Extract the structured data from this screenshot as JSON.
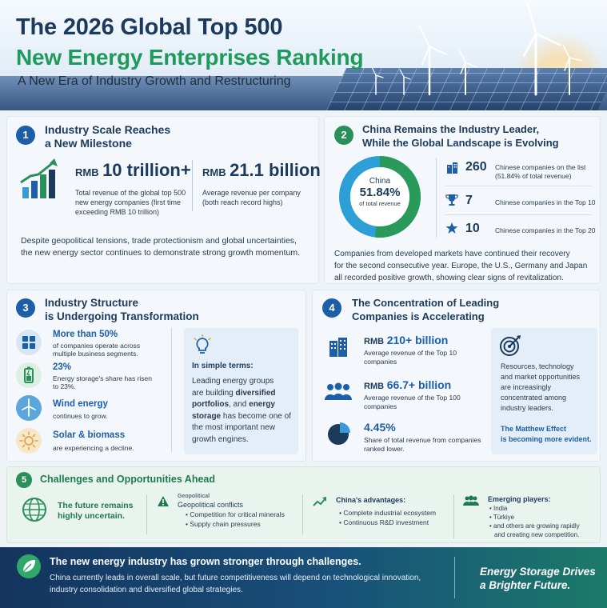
{
  "header": {
    "title_line1": "The 2026 Global Top 500",
    "title_line2": "New Energy Enterprises Ranking",
    "subtitle": "A New Era of Industry Growth and Restructuring"
  },
  "colors": {
    "navy": "#1b3a5c",
    "green": "#2a8f5a",
    "blue": "#1c5ea8"
  },
  "s1": {
    "number": "1",
    "title_a": "Industry Scale Reaches",
    "title_b": "a New Milestone",
    "stat1_prefix": "RMB",
    "stat1_value": "10 trillion+",
    "stat1_desc1": "Total revenue of the global top 500",
    "stat1_desc2": "new energy companies (first time",
    "stat1_desc3": "exceeding RMB 10 trillion)",
    "stat2_prefix": "RMB",
    "stat2_value": "21.1 billion",
    "stat2_desc1": "Average revenue per company",
    "stat2_desc2": "(both reach record highs)",
    "body1": "Despite geopolitical tensions, trade protectionism and global uncertainties,",
    "body2": "the new energy sector continues to demonstrate strong growth momentum.",
    "icon": "bar-chart-growth-icon"
  },
  "s2": {
    "number": "2",
    "title_a": "China Remains the Industry Leader,",
    "title_b": "While the Global Landscape is Evolving",
    "donut_label": "China",
    "donut_value": "51.84%",
    "donut_caption": "of total revenue",
    "donut_share": 51.84,
    "rows": [
      {
        "icon": "building-icon",
        "value": "260",
        "label1": "Chinese companies on the list",
        "label2": "(51.84% of total revenue)"
      },
      {
        "icon": "trophy-icon",
        "value": "7",
        "label1": "Chinese companies in the Top 10",
        "label2": ""
      },
      {
        "icon": "star-icon",
        "value": "10",
        "label1": "Chinese companies in the Top 20",
        "label2": ""
      }
    ],
    "body1": "Companies from developed markets have continued their recovery",
    "body2": "for the second consecutive year. Europe, the U.S., Germany and Japan",
    "body3": "all recorded positive growth, showing clear signs of revitalization."
  },
  "s3": {
    "number": "3",
    "title_a": "Industry Structure",
    "title_b": "is Undergoing Transformation",
    "items": [
      {
        "icon": "grid-segments-icon",
        "head": "More than 50%",
        "sub1": "of companies operate across",
        "sub2": "multiple business segments."
      },
      {
        "icon": "battery-icon",
        "head": "23%",
        "sub1": "Energy storage's share has risen",
        "sub2": "to 23%."
      },
      {
        "icon": "wind-turbine-icon",
        "head": "Wind energy",
        "sub1": "continues to grow.",
        "sub2": ""
      },
      {
        "icon": "sun-icon",
        "head": "Solar & biomass",
        "sub1": "are experiencing a decline.",
        "sub2": ""
      }
    ],
    "simple_title": "In simple terms:",
    "simple_l1": "Leading energy groups",
    "simple_l2a": "are building ",
    "simple_l2b": "diversified",
    "simple_l3a": "portfolios",
    "simple_l3b": ", and ",
    "simple_l3c": "energy",
    "simple_l4a": "storage",
    "simple_l4b": " has become one of",
    "simple_l5": "the most important new",
    "simple_l6": "growth engines.",
    "simple_icon": "lightbulb-icon"
  },
  "s4": {
    "number": "4",
    "title_a": "The Concentration of Leading",
    "title_b": "Companies is Accelerating",
    "items": [
      {
        "icon": "office-building-icon",
        "prefix": "RMB",
        "value": "210+ billion",
        "sub1": "Average revenue of the Top 10",
        "sub2": "companies"
      },
      {
        "icon": "group-people-icon",
        "prefix": "RMB",
        "value": "66.7+ billion",
        "sub1": "Average revenue of the Top 100",
        "sub2": "companies"
      },
      {
        "icon": "pie-slice-icon",
        "prefix": "",
        "value": "4.45%",
        "sub1": "Share of total revenue from companies",
        "sub2": "ranked lower."
      }
    ],
    "side_l1": "Resources, technology",
    "side_l2": "and market opportunities",
    "side_l3": "are increasingly",
    "side_l4": "concentrated among",
    "side_l5": "industry leaders.",
    "side_h1": "The Matthew Effect",
    "side_h2": "is becoming more evident.",
    "side_icon": "target-icon"
  },
  "s5": {
    "number": "5",
    "title": "Challenges and Opportunities Ahead",
    "globe_l1": "The future remains",
    "globe_l2": "highly uncertain.",
    "risks_head": "Geopolitical",
    "risks_line": "Geopolitical conflicts",
    "risks": [
      "Competition for critical minerals",
      "Supply chain pressures"
    ],
    "adv_head": "China's advantages:",
    "adv": [
      "Complete industrial ecosystem",
      "Continuous R&D investment"
    ],
    "emerge_head": "Emerging players:",
    "emerge": [
      "India",
      "Türkiye",
      "and others are growing rapidly"
    ],
    "emerge_tail": "and creating new competition."
  },
  "footer": {
    "headline": "The new energy industry has grown stronger through challenges.",
    "para1": "China currently leads in overall scale, but future competitiveness will depend on technological innovation,",
    "para2": "industry consolidation and diversified global strategies.",
    "slogan1": "Energy Storage Drives",
    "slogan2": "a Brighter Future.",
    "icon": "leaf-icon"
  }
}
